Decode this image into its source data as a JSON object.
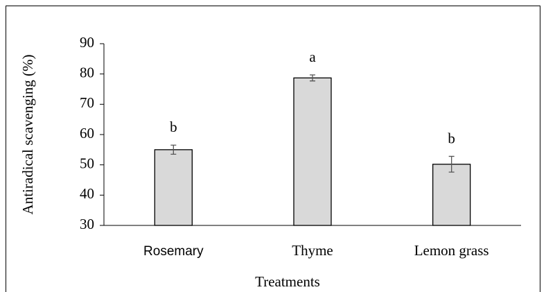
{
  "chart_data": {
    "type": "bar",
    "x_label": "Treatments",
    "y_label": "Antiradical scavenging (%)",
    "categories": [
      "Rosemary",
      "Thyme",
      "Lemon grass"
    ],
    "values": [
      55,
      78.7,
      50.2
    ],
    "errors": [
      1.5,
      1.0,
      2.6
    ],
    "annotations": [
      "b",
      "a",
      "b"
    ],
    "color": "#d9d9d9",
    "ylim": [
      30,
      90
    ],
    "yticks": [
      30,
      40,
      50,
      60,
      70,
      80,
      90
    ],
    "grid": false
  }
}
